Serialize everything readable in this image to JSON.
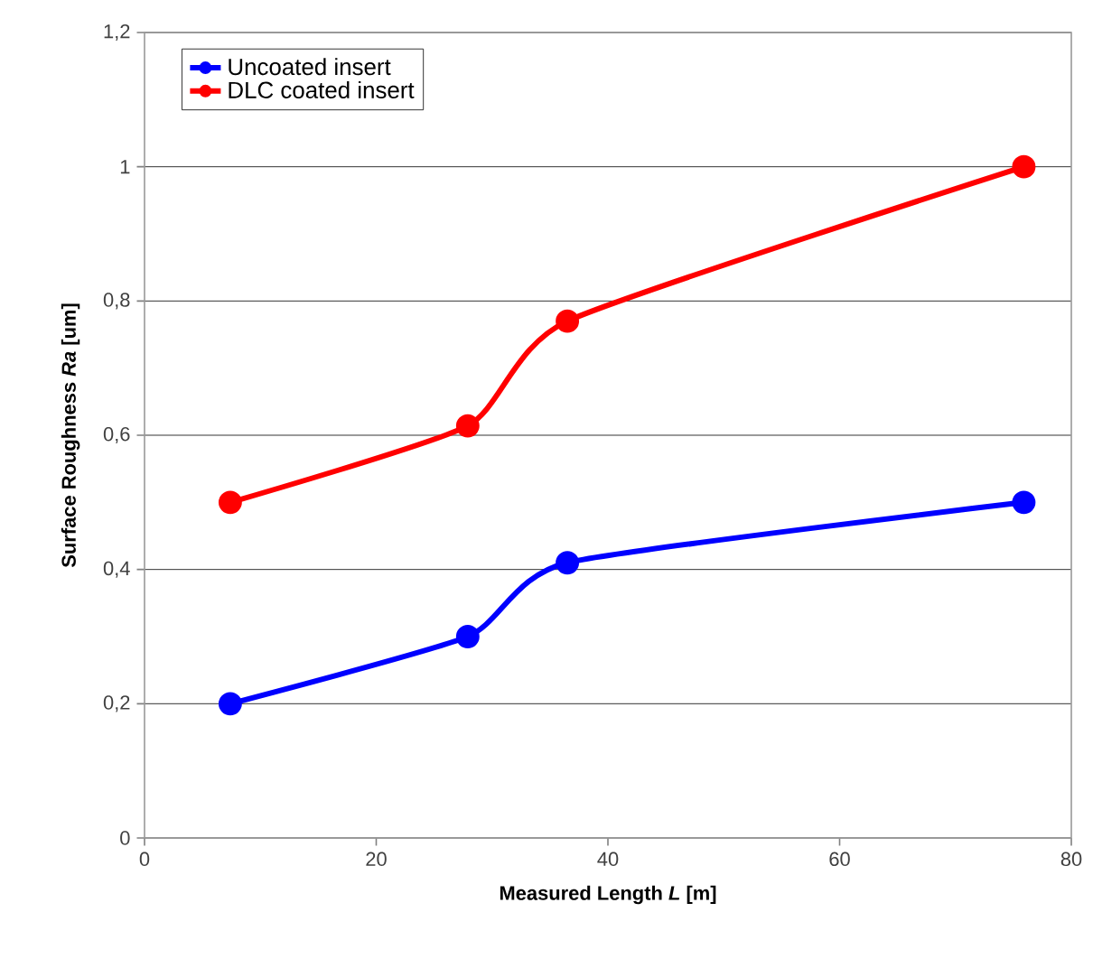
{
  "chart_data": {
    "type": "line",
    "xlabel": "Measured Length *L* [m]",
    "ylabel": "Surface Roughness *Ra* [um]",
    "x": [
      7.4,
      27.9,
      36.5,
      75.9
    ],
    "series": [
      {
        "name": "Uncoated insert",
        "color": "#0000ff",
        "values": [
          0.2,
          0.3,
          0.41,
          0.5
        ]
      },
      {
        "name": "DLC coated insert",
        "color": "#ff0000",
        "values": [
          0.5,
          0.614,
          0.77,
          1.0
        ]
      }
    ],
    "xlim": [
      0,
      80
    ],
    "xticks": [
      0,
      20,
      40,
      60,
      80
    ],
    "ylim": [
      0,
      1.2
    ],
    "yticks": [
      0,
      {
        "value": 0.2,
        "label": "0,2"
      },
      {
        "value": 0.4,
        "label": "0,4"
      },
      {
        "value": 0.6,
        "label": "0,6"
      },
      {
        "value": 0.8,
        "label": "0,8"
      },
      1,
      {
        "value": 1.2,
        "label": "1,2"
      }
    ],
    "grid": "y",
    "legend": "top left",
    "marker": "circle",
    "line_style": "solid"
  }
}
